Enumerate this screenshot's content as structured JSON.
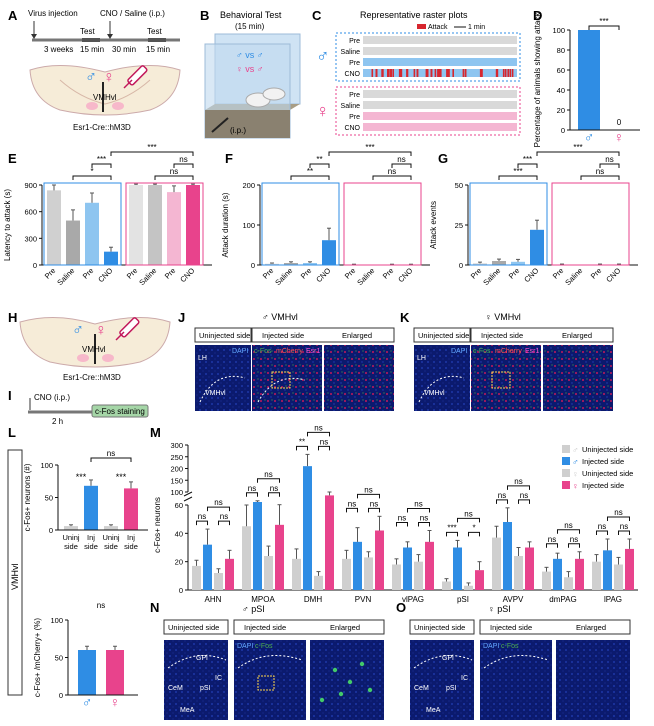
{
  "panels": {
    "A": {
      "letter": "A",
      "labels": {
        "virus": "Virus injection",
        "cno": "CNO / Saline (i.p.)",
        "weeks": "3 weeks",
        "test1": "Test",
        "test2": "Test",
        "m15a": "15 min",
        "m30": "30 min",
        "m15b": "15 min",
        "region": "VMHvl",
        "strain": "Esr1-Cre::hM3D"
      }
    },
    "B": {
      "letter": "B",
      "title": "Behavioral Test",
      "subtitle": "(15 min)",
      "vs_male": "♂ vs ♂",
      "vs_female": "♀ vs ♂",
      "ip": "(i.p.)"
    },
    "C": {
      "letter": "C",
      "title": "Representative raster plots",
      "legend_attack": "Attack",
      "legend_scale": "1 min",
      "rows_male": [
        "Pre",
        "Saline",
        "Pre",
        "CNO"
      ],
      "rows_female": [
        "Pre",
        "Saline",
        "Pre",
        "CNO"
      ]
    },
    "D": {
      "letter": "D",
      "ylabel": "Percentage of animals showing attack",
      "sig": "***",
      "zero_label": "0",
      "yticks": [
        "0",
        "20",
        "40",
        "60",
        "80",
        "100"
      ]
    },
    "E": {
      "letter": "E",
      "ylabel": "Latency to attack (s)"
    },
    "F": {
      "letter": "F",
      "ylabel": "Attack duration (s)"
    },
    "G": {
      "letter": "G",
      "ylabel": "Attack events"
    },
    "H": {
      "letter": "H",
      "region": "VMHvl",
      "strain": "Esr1-Cre::hM3D"
    },
    "I": {
      "letter": "I",
      "cno": "CNO (i.p.)",
      "hours": "2 h",
      "staining": "c-Fos staining"
    },
    "J": {
      "letter": "J",
      "title": "♂ VMHvl",
      "uninjected": "Uninjected side",
      "injected": "Injected side",
      "enlarged": "Enlarged",
      "dapi": "DAPI",
      "cfos": "c-Fos",
      "mcherry": "mCherry",
      "esr1": "Esr1",
      "lh": "LH",
      "vmhvl": "VMHvl"
    },
    "K": {
      "letter": "K",
      "title": "♀ VMHvl",
      "uninjected": "Uninjected side",
      "injected": "Injected side",
      "enlarged": "Enlarged",
      "dapi": "DAPI",
      "cfos": "c-Fos",
      "mcherry": "mCherry",
      "esr1": "Esr1",
      "lh": "LH",
      "vmhvl": "VMHvl"
    },
    "L": {
      "letter": "L",
      "side_label": "VMHvl",
      "top_ylabel": "c-Fos+ neurons (#)",
      "top_xlabels": [
        "Uninj side",
        "Inj side",
        "Uninj side",
        "Inj side"
      ],
      "top_sig": [
        "***",
        "***",
        "ns"
      ],
      "bottom_ylabel": "c-Fos+ /mCherry+ (%)",
      "bottom_sig": "ns"
    },
    "M": {
      "letter": "M",
      "ylabel": "c-Fos+ neurons",
      "legend": [
        "Uninjected side",
        "Injected side",
        "Uninjected side",
        "Injected side"
      ]
    },
    "N": {
      "letter": "N",
      "title": "♂ pSI",
      "uninjected": "Uninjected side",
      "injected": "Injected side",
      "enlarged": "Enlarged",
      "dapi": "DAPI",
      "cfos": "c-Fos",
      "regions": [
        "GPi",
        "IC",
        "pSI",
        "CeM",
        "MeA"
      ]
    },
    "O": {
      "letter": "O",
      "title": "♀ pSI",
      "uninjected": "Uninjected side",
      "injected": "Injected side",
      "enlarged": "Enlarged",
      "dapi": "DAPI",
      "cfos": "c-Fos",
      "regions": [
        "GPi",
        "IC",
        "pSI",
        "CeM",
        "MeA"
      ]
    }
  },
  "colors": {
    "male": "#2f8de4",
    "male_light": "#8ec5f0",
    "female": "#e8438c",
    "female_light": "#f4b6d2",
    "grey": "#bdbdbd",
    "attack": "#d7262e",
    "micro_bg": "#0b1a6e"
  },
  "chart_data": [
    {
      "id": "D",
      "type": "bar",
      "categories": [
        "♂",
        "♀"
      ],
      "values": [
        100,
        0
      ],
      "ylabel": "Percentage of animals showing attack",
      "ylim": [
        0,
        100
      ],
      "yticks": [
        0,
        20,
        40,
        60,
        80,
        100
      ]
    },
    {
      "id": "E",
      "type": "bar",
      "categories": [
        "Pre",
        "Saline",
        "Pre",
        "CNO",
        "Pre",
        "Saline",
        "Pre",
        "CNO"
      ],
      "values": [
        840,
        500,
        700,
        150,
        900,
        900,
        820,
        900
      ],
      "errors": [
        60,
        120,
        110,
        50,
        10,
        10,
        70,
        10
      ],
      "ylabel": "Latency to attack (s)",
      "ylim": [
        0,
        900
      ],
      "yticks": [
        0,
        300,
        600,
        900
      ],
      "significance": [
        "*",
        "***",
        "ns",
        "***",
        "ns"
      ]
    },
    {
      "id": "F",
      "type": "bar",
      "categories": [
        "Pre",
        "Saline",
        "Pre",
        "CNO",
        "Pre",
        "Saline",
        "Pre",
        "CNO"
      ],
      "values": [
        3,
        5,
        5,
        62,
        1,
        0,
        1,
        1
      ],
      "errors": [
        2,
        3,
        3,
        30,
        1,
        0,
        1,
        1
      ],
      "ylabel": "Attack duration (s)",
      "ylim": [
        0,
        200
      ],
      "yticks": [
        0,
        100,
        200
      ],
      "significance": [
        "**",
        "**",
        "ns",
        "***",
        "ns"
      ]
    },
    {
      "id": "G",
      "type": "bar",
      "categories": [
        "Pre",
        "Saline",
        "Pre",
        "CNO",
        "Pre",
        "Saline",
        "Pre",
        "CNO"
      ],
      "values": [
        1,
        2.5,
        2,
        22,
        0.3,
        0,
        0.3,
        0.3
      ],
      "errors": [
        0.8,
        1.2,
        1.5,
        6,
        0.3,
        0,
        0.3,
        0.3
      ],
      "ylabel": "Attack events",
      "ylim": [
        0,
        50
      ],
      "yticks": [
        0,
        25,
        50
      ],
      "significance": [
        "***",
        "***",
        "ns",
        "***",
        "ns"
      ]
    },
    {
      "id": "L-top",
      "type": "bar",
      "categories": [
        "Uninj side",
        "Inj side",
        "Uninj side",
        "Inj side"
      ],
      "values": [
        6,
        68,
        6,
        64
      ],
      "errors": [
        2,
        9,
        2,
        10
      ],
      "ylabel": "c-Fos+ neurons (#)",
      "ylim": [
        0,
        100
      ],
      "yticks": [
        0,
        50,
        100
      ]
    },
    {
      "id": "L-bottom",
      "type": "bar",
      "categories": [
        "♂",
        "♀"
      ],
      "values": [
        60,
        60
      ],
      "errors": [
        5,
        5
      ],
      "ylabel": "c-Fos+ /mCherry+ (%)",
      "ylim": [
        0,
        100
      ],
      "yticks": [
        0,
        50,
        100
      ]
    },
    {
      "id": "M",
      "type": "bar",
      "categories": [
        "AHN",
        "MPOA",
        "DMH",
        "PVN",
        "vlPAG",
        "pSI",
        "AVPV",
        "dmPAG",
        "lPAG"
      ],
      "series": [
        {
          "name": "Uninjected side",
          "values": [
            17,
            45,
            22,
            22,
            18,
            6,
            37,
            13,
            20
          ],
          "errors": [
            4,
            15,
            7,
            6,
            4,
            2,
            8,
            3,
            5
          ]
        },
        {
          "name": "Injected side",
          "values": [
            32,
            70,
            210,
            34,
            30,
            30,
            48,
            22,
            28
          ],
          "errors": [
            11,
            4,
            50,
            10,
            4,
            5,
            10,
            4,
            8
          ]
        },
        {
          "name": "Uninjected side",
          "values": [
            12,
            24,
            10,
            23,
            20,
            3,
            24,
            9,
            18
          ],
          "errors": [
            3,
            7,
            3,
            4,
            5,
            2,
            6,
            4,
            5
          ]
        },
        {
          "name": "Injected side",
          "values": [
            22,
            46,
            92,
            42,
            34,
            14,
            30,
            22,
            29
          ],
          "errors": [
            6,
            15,
            8,
            10,
            8,
            6,
            4,
            5,
            7
          ]
        }
      ],
      "ylabel": "c-Fos+ neurons",
      "axis_break": true,
      "yticks_lower": [
        0,
        20,
        40,
        60
      ],
      "yticks_upper": [
        100,
        150,
        200,
        250,
        300
      ],
      "significance": [
        "ns",
        "ns",
        "ns",
        "ns",
        "ns",
        "ns",
        "**",
        "ns",
        "ns",
        "ns",
        "ns",
        "ns",
        "ns",
        "ns",
        "ns",
        "***",
        "*",
        "ns",
        "ns",
        "ns",
        "ns",
        "ns",
        "ns",
        "ns",
        "ns",
        "ns",
        "ns"
      ]
    }
  ]
}
